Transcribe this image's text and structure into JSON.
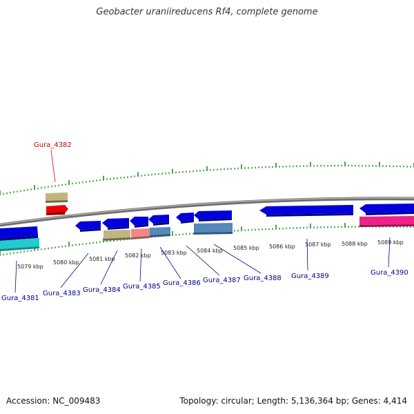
{
  "title": "Geobacter uraniireducens Rf4, complete genome",
  "footer": {
    "accession": "Accession: NC_009483",
    "summary": "Topology: circular; Length: 5,136,364 bp; Genes: 4,414"
  },
  "colors": {
    "backbone": "#8c8c8c",
    "tick_green": "#1a8c1a",
    "gene_blue": "#0000dd",
    "gene_khaki": "#bfb67f",
    "gene_red": "#ee0000",
    "gene_cyan": "#22cccc",
    "gene_salmon": "#ee8888",
    "gene_steel": "#5588bb",
    "gene_magenta": "#ee2288",
    "label_navy": "#00008b",
    "label_red": "#cc0000"
  },
  "kbp_labels": [
    "5079 kbp",
    "5080 kbp",
    "5081 kbp",
    "5082 kbp",
    "5083 kbp",
    "5084 kbp",
    "5085 kbp",
    "5086 kbp",
    "5087 kbp",
    "5088 kbp",
    "5089 kbp"
  ],
  "gene_labels": {
    "gura_4381": "Gura_4381",
    "gura_4382": "Gura_4382",
    "gura_4383": "Gura_4383",
    "gura_4384": "Gura_4384",
    "gura_4385": "Gura_4385",
    "gura_4386": "Gura_4386",
    "gura_4387": "Gura_4387",
    "gura_4388": "Gura_4388",
    "gura_4389": "Gura_4389",
    "gura_4390": "Gura_4390"
  }
}
